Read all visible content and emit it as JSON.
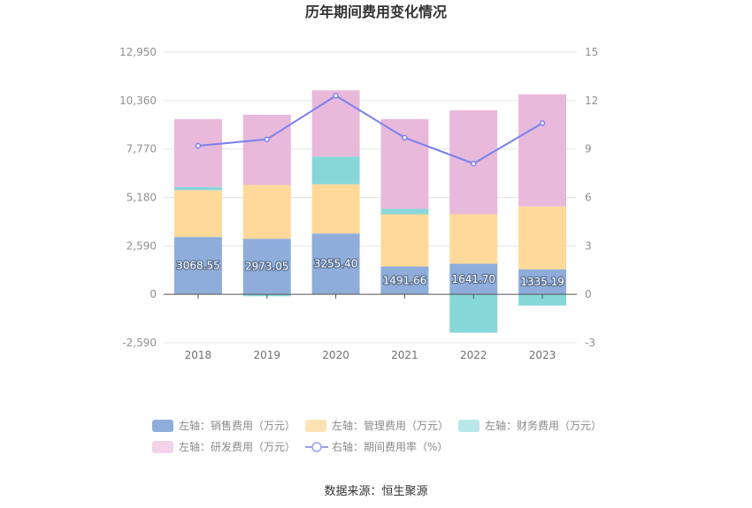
{
  "chart_data": {
    "type": "bar",
    "title": "历年期间费用变化情况",
    "categories": [
      "2018",
      "2019",
      "2020",
      "2021",
      "2022",
      "2023"
    ],
    "left_axis": {
      "ylim": [
        -2590,
        12950
      ],
      "ticks": [
        "12,950",
        "10,360",
        "7,770",
        "5,180",
        "2,590",
        "0",
        "-2,590"
      ],
      "tick_values": [
        12950,
        10360,
        7770,
        5180,
        2590,
        0,
        -2590
      ]
    },
    "right_axis": {
      "ylim": [
        -3,
        15
      ],
      "ticks": [
        "15",
        "12",
        "9",
        "6",
        "3",
        "0",
        "-3"
      ],
      "tick_values": [
        15,
        12,
        9,
        6,
        3,
        0,
        -3
      ]
    },
    "series": [
      {
        "name": "左轴：销售费用（万元）",
        "axis": "left",
        "kind": "bar",
        "color": "#8eadda",
        "legend_color": "#8eadda",
        "values": [
          3068.55,
          2973.05,
          3255.4,
          1491.66,
          1641.7,
          1335.19
        ],
        "labels": [
          "3068.55",
          "2973.05",
          "3255.40",
          "1491.66",
          "1641.70",
          "1335.19"
        ]
      },
      {
        "name": "左轴：管理费用（万元）",
        "axis": "left",
        "kind": "bar",
        "color": "#ffd99a",
        "legend_color": "#ffe2b4",
        "values": [
          2500,
          2870,
          2630,
          2790,
          2640,
          3360
        ]
      },
      {
        "name": "左轴：财务费用（万元）",
        "axis": "left",
        "kind": "bar",
        "color": "#87d7d9",
        "legend_color": "#b8e8e9",
        "values": [
          170,
          -100,
          1480,
          290,
          -2050,
          -600
        ]
      },
      {
        "name": "左轴：研发费用（万元）",
        "axis": "left",
        "kind": "bar",
        "color": "#e8b9da",
        "legend_color": "#f2d3ea",
        "values": [
          3630,
          3760,
          3540,
          4800,
          5560,
          6000
        ]
      },
      {
        "name": "右轴：期间费用率（%）",
        "axis": "right",
        "kind": "line",
        "color": "#7b80f0",
        "legend_color": "#9aa0f0",
        "values": [
          9.2,
          9.6,
          12.3,
          9.7,
          8.1,
          10.6
        ]
      }
    ],
    "legend_position": "bottom",
    "grid": true
  },
  "source_text": "数据来源：恒生聚源"
}
